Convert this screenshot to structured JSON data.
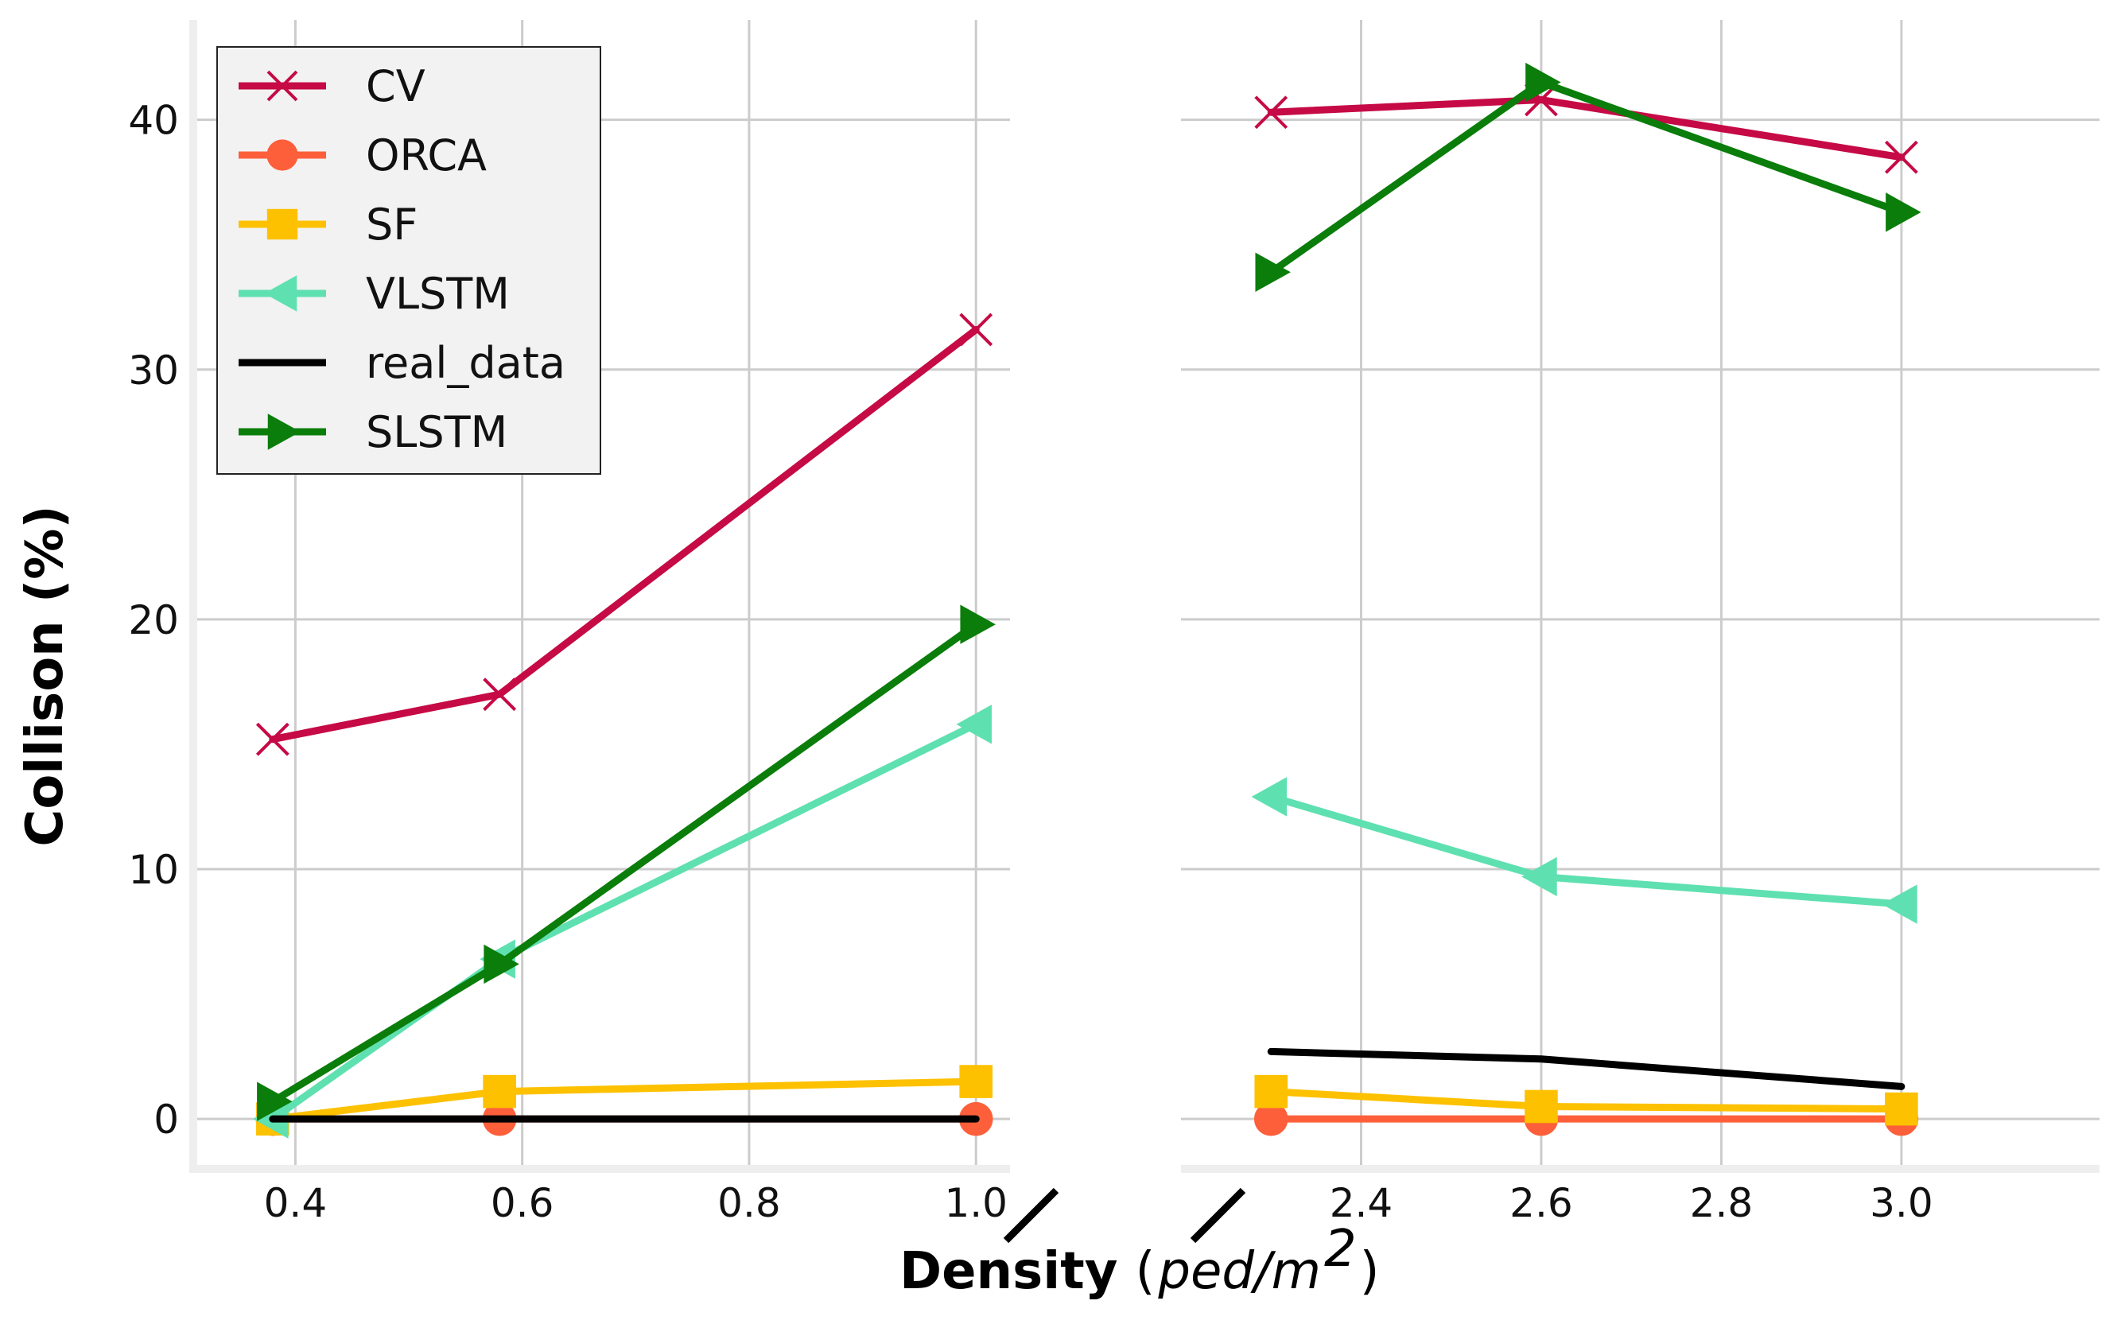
{
  "chart_data": {
    "type": "line",
    "title": "",
    "ylabel": "Collison (%)",
    "xlabel_bold": "Density",
    "xlabel_open": "(",
    "xlabel_unit": "ped/m",
    "xlabel_exp": "2",
    "xlabel_close": ")",
    "ylim": [
      -2,
      44
    ],
    "yticks": [
      0,
      10,
      20,
      30,
      40
    ],
    "panels": [
      {
        "xlim": [
          0.31,
          1.03
        ],
        "xticks": [
          0.4,
          0.6,
          0.8,
          1.0
        ],
        "ticklabels": [
          "0.4",
          "0.6",
          "0.8",
          "1.0"
        ]
      },
      {
        "xlim": [
          2.2,
          3.22
        ],
        "xticks": [
          2.4,
          2.6,
          2.8,
          3.0
        ],
        "ticklabels": [
          "2.4",
          "2.6",
          "2.8",
          "3.0"
        ]
      }
    ],
    "x": [
      0.38,
      0.58,
      1.0,
      2.3,
      2.6,
      3.0
    ],
    "series": [
      {
        "name": "CV",
        "color": "#c50a45",
        "marker": "x",
        "values": [
          15.2,
          17.0,
          31.6,
          40.3,
          40.8,
          38.5
        ]
      },
      {
        "name": "ORCA",
        "color": "#fd5f3b",
        "marker": "circle",
        "values": [
          0.0,
          0.0,
          0.0,
          0.0,
          0.0,
          0.0
        ]
      },
      {
        "name": "SF",
        "color": "#fdc100",
        "marker": "square",
        "values": [
          0.0,
          1.1,
          1.5,
          1.1,
          0.5,
          0.4
        ]
      },
      {
        "name": "VLSTM",
        "color": "#5fe0b0",
        "marker": "triangle-left",
        "values": [
          0.0,
          6.4,
          15.8,
          12.9,
          9.7,
          8.6
        ]
      },
      {
        "name": "real_data",
        "color": "#000000",
        "marker": "none",
        "values": [
          0.0,
          0.0,
          0.0,
          2.7,
          2.4,
          1.3
        ]
      },
      {
        "name": "SLSTM",
        "color": "#0a7d0a",
        "marker": "triangle-right",
        "values": [
          0.7,
          6.2,
          19.8,
          33.9,
          41.5,
          36.3
        ]
      }
    ],
    "legend_position": "top-left",
    "grid": true,
    "broken_x_axis": true
  }
}
